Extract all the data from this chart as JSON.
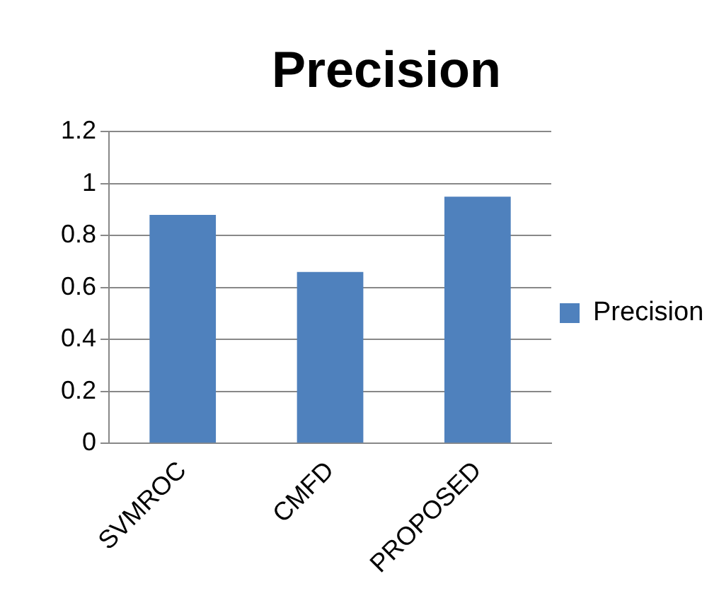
{
  "chart_data": {
    "type": "bar",
    "title": "Precision",
    "categories": [
      "SVMROC",
      "CMFD",
      "PROPOSED"
    ],
    "series": [
      {
        "name": "Precision",
        "color": "#4f81bd",
        "values": [
          0.88,
          0.66,
          0.95
        ]
      }
    ],
    "ylim": [
      0,
      1.2
    ],
    "yticks": [
      0,
      0.2,
      0.4,
      0.6,
      0.8,
      1,
      1.2
    ],
    "grid": "y",
    "legend": "right"
  }
}
